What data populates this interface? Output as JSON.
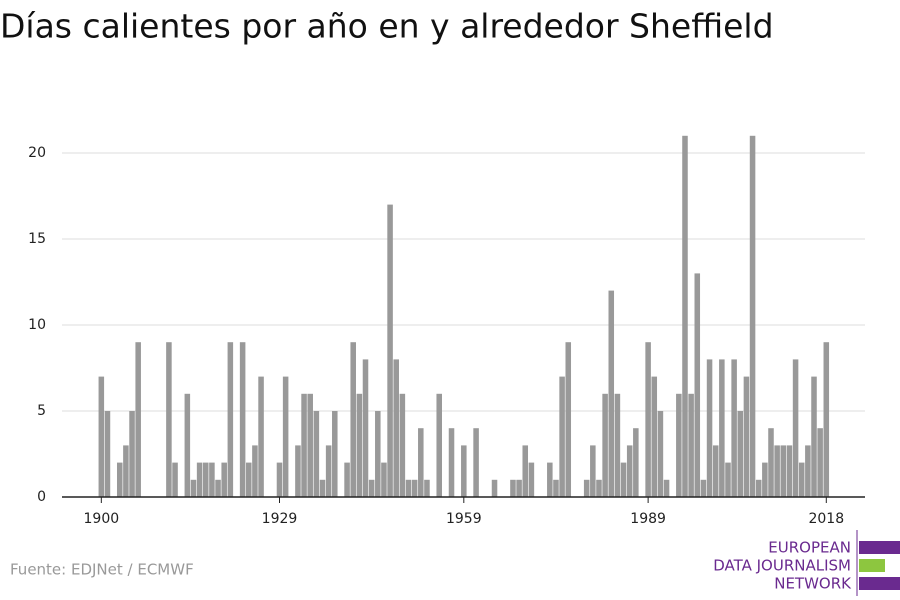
{
  "chart_data": {
    "type": "bar",
    "title": "Días calientes por año en y alrededor Sheffield",
    "source": "Fuente: EDJNet / ECMWF",
    "logo": [
      "EUROPEAN",
      "DATA JOURNALISM",
      "NETWORK"
    ],
    "color": "#999999",
    "grid": true,
    "xlim": [
      1893.6,
      2024.3
    ],
    "xticks": [
      1900,
      1929,
      1959,
      1989,
      2018
    ],
    "ylim": [
      0,
      22
    ],
    "yticks": [
      0,
      5,
      10,
      15,
      20
    ],
    "x": [
      1900,
      1901,
      1902,
      1903,
      1904,
      1905,
      1906,
      1907,
      1908,
      1909,
      1910,
      1911,
      1912,
      1913,
      1914,
      1915,
      1916,
      1917,
      1918,
      1919,
      1920,
      1921,
      1922,
      1923,
      1924,
      1925,
      1926,
      1927,
      1928,
      1929,
      1930,
      1931,
      1932,
      1933,
      1934,
      1935,
      1936,
      1937,
      1938,
      1939,
      1940,
      1941,
      1942,
      1943,
      1944,
      1945,
      1946,
      1947,
      1948,
      1949,
      1950,
      1951,
      1952,
      1953,
      1954,
      1955,
      1956,
      1957,
      1958,
      1959,
      1960,
      1961,
      1962,
      1963,
      1964,
      1965,
      1966,
      1967,
      1968,
      1969,
      1970,
      1971,
      1972,
      1973,
      1974,
      1975,
      1976,
      1977,
      1978,
      1979,
      1980,
      1981,
      1982,
      1983,
      1984,
      1985,
      1986,
      1987,
      1988,
      1989,
      1990,
      1991,
      1992,
      1993,
      1994,
      1995,
      1996,
      1997,
      1998,
      1999,
      2000,
      2001,
      2002,
      2003,
      2004,
      2005,
      2006,
      2007,
      2008,
      2009,
      2010,
      2011,
      2012,
      2013,
      2014,
      2015,
      2016,
      2017,
      2018
    ],
    "values": [
      7,
      5,
      0,
      2,
      3,
      5,
      9,
      0,
      0,
      0,
      0,
      9,
      2,
      0,
      6,
      1,
      2,
      2,
      2,
      1,
      2,
      9,
      0,
      9,
      2,
      3,
      7,
      0,
      0,
      2,
      7,
      0,
      3,
      6,
      6,
      5,
      1,
      3,
      5,
      0,
      2,
      9,
      6,
      8,
      1,
      5,
      2,
      17,
      8,
      6,
      1,
      1,
      4,
      1,
      0,
      6,
      0,
      4,
      0,
      3,
      0,
      4,
      0,
      0,
      1,
      0,
      0,
      1,
      1,
      3,
      2,
      0,
      0,
      2,
      1,
      7,
      9,
      0,
      0,
      1,
      3,
      1,
      6,
      12,
      6,
      2,
      3,
      4,
      0,
      9,
      7,
      5,
      1,
      0,
      6,
      21,
      6,
      13,
      1,
      8,
      3,
      8,
      2,
      8,
      5,
      7,
      21,
      1,
      2,
      4,
      3,
      3,
      3,
      8,
      2,
      3,
      7,
      4,
      9
    ]
  }
}
